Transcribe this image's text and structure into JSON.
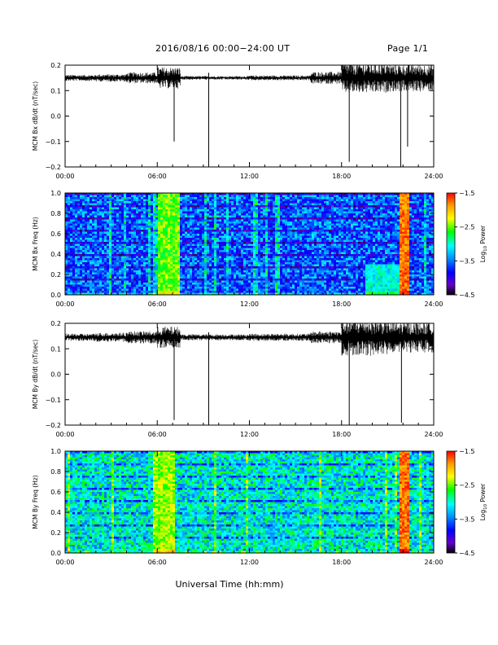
{
  "header": {
    "title": "2016/08/16  00:00−24:00 UT",
    "page": "Page 1/1"
  },
  "footer": {
    "xlabel": "Universal Time (hh:mm)"
  },
  "colors": {
    "trace": "#000000",
    "background": "#ffffff"
  },
  "colorbar": {
    "ticks": [
      "−1.5",
      "−2.5",
      "−3.5",
      "−4.5"
    ],
    "label_prefix": "Log",
    "label_sub": "10",
    "label_suffix": " Power",
    "colors": [
      "#ff0000",
      "#ff9900",
      "#ffff00",
      "#00ff00",
      "#00ffff",
      "#0088ff",
      "#0000ff",
      "#6600cc",
      "#000000"
    ]
  },
  "chart_data": [
    {
      "type": "line",
      "ylabel": "MCM Bx dB/dt (nT/sec)",
      "xlim": [
        0,
        24
      ],
      "ylim": [
        -0.2,
        0.2
      ],
      "x_ticks": [
        "00:00",
        "06:00",
        "12:00",
        "18:00",
        "24:00"
      ],
      "y_ticks": [
        "0.2",
        "0.1",
        "0.0",
        "−0.1",
        "−0.2"
      ],
      "baseline": 0.15,
      "activity": [
        {
          "hours": [
            0,
            2
          ],
          "amplitude": 0.01
        },
        {
          "hours": [
            2,
            4
          ],
          "amplitude": 0.012
        },
        {
          "hours": [
            4,
            6
          ],
          "amplitude": 0.018
        },
        {
          "hours": [
            6,
            7.5
          ],
          "amplitude": 0.035
        },
        {
          "hours": [
            7.5,
            12
          ],
          "amplitude": 0.006
        },
        {
          "hours": [
            12,
            16
          ],
          "amplitude": 0.008
        },
        {
          "hours": [
            16,
            18
          ],
          "amplitude": 0.02
        },
        {
          "hours": [
            18,
            21
          ],
          "amplitude": 0.05
        },
        {
          "hours": [
            21,
            24
          ],
          "amplitude": 0.045
        }
      ],
      "spikes": [
        {
          "hour": 7.1,
          "value": -0.1
        },
        {
          "hour": 9.35,
          "value": -0.2
        },
        {
          "hour": 18.5,
          "value": -0.18
        },
        {
          "hour": 21.85,
          "value": -0.2
        },
        {
          "hour": 22.3,
          "value": -0.12
        }
      ]
    },
    {
      "type": "heatmap",
      "ylabel": "MCM Bx Freq (Hz)",
      "xlim": [
        0,
        24
      ],
      "ylim": [
        0,
        1.0
      ],
      "x_ticks": [
        "00:00",
        "06:00",
        "12:00",
        "18:00",
        "24:00"
      ],
      "y_ticks": [
        "1.0",
        "0.8",
        "0.6",
        "0.4",
        "0.2",
        "0.0"
      ],
      "background_log_power": -3.5,
      "events": [
        {
          "hours": [
            6.0,
            7.4
          ],
          "log_power": -2.5
        },
        {
          "hours": [
            21.8,
            22.4
          ],
          "log_power": -1.8
        },
        {
          "hours": [
            19.5,
            22.0
          ],
          "freq_max_hz": 0.3,
          "log_power": -3.0
        }
      ]
    },
    {
      "type": "line",
      "ylabel": "MCM By dB/dt (nT/sec)",
      "xlim": [
        0,
        24
      ],
      "ylim": [
        -0.2,
        0.2
      ],
      "x_ticks": [
        "00:00",
        "06:00",
        "12:00",
        "18:00",
        "24:00"
      ],
      "y_ticks": [
        "0.2",
        "0.1",
        "0.0",
        "−0.1",
        "−0.2"
      ],
      "baseline": 0.145,
      "activity": [
        {
          "hours": [
            0,
            2
          ],
          "amplitude": 0.012
        },
        {
          "hours": [
            2,
            4
          ],
          "amplitude": 0.015
        },
        {
          "hours": [
            4,
            6
          ],
          "amplitude": 0.02
        },
        {
          "hours": [
            6,
            7.5
          ],
          "amplitude": 0.035
        },
        {
          "hours": [
            7.5,
            12
          ],
          "amplitude": 0.01
        },
        {
          "hours": [
            12,
            16
          ],
          "amplitude": 0.012
        },
        {
          "hours": [
            16,
            18
          ],
          "amplitude": 0.02
        },
        {
          "hours": [
            18,
            21
          ],
          "amplitude": 0.06
        },
        {
          "hours": [
            21,
            24
          ],
          "amplitude": 0.05
        }
      ],
      "spikes": [
        {
          "hour": 7.1,
          "value": -0.18
        },
        {
          "hour": 9.35,
          "value": -0.2
        },
        {
          "hour": 18.5,
          "value": -0.2
        },
        {
          "hour": 21.9,
          "value": -0.19
        }
      ]
    },
    {
      "type": "heatmap",
      "ylabel": "MCM By Freq (Hz)",
      "xlim": [
        0,
        24
      ],
      "ylim": [
        0,
        1.0
      ],
      "x_ticks": [
        "00:00",
        "06:00",
        "12:00",
        "18:00",
        "24:00"
      ],
      "y_ticks": [
        "1.0",
        "0.8",
        "0.6",
        "0.4",
        "0.2",
        "0.0"
      ],
      "background_log_power": -3.0,
      "events": [
        {
          "hours": [
            5.8,
            7.2
          ],
          "log_power": -2.4
        },
        {
          "hours": [
            21.8,
            22.4
          ],
          "log_power": -1.8
        }
      ]
    }
  ]
}
